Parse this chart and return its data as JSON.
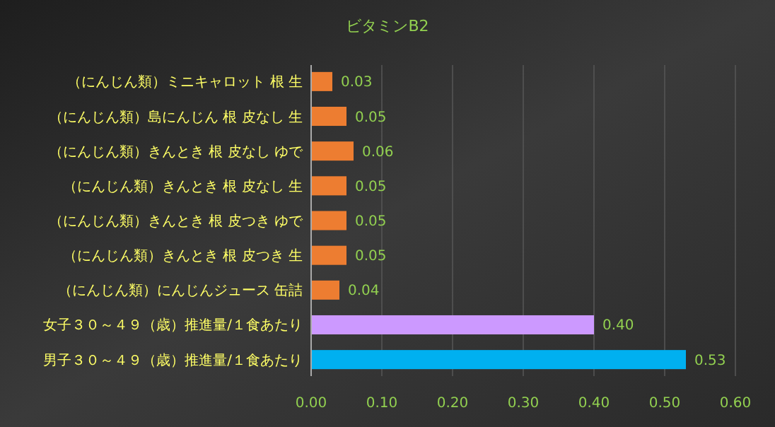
{
  "chart_data": {
    "type": "bar",
    "orientation": "horizontal",
    "title": "ビタミンB2",
    "categories": [
      "（にんじん類）ミニキャロット 根 生",
      "（にんじん類）島にんじん 根 皮なし 生",
      "（にんじん類）きんとき 根 皮なし ゆで",
      "（にんじん類）きんとき 根 皮なし 生",
      "（にんじん類）きんとき 根 皮つき ゆで",
      "（にんじん類）きんとき 根 皮つき 生",
      "（にんじん類）にんじんジュース 缶詰",
      "女子３０～４９（歳）推進量/１食あたり",
      "男子３０～４９（歳）推進量/１食あたり"
    ],
    "values": [
      0.03,
      0.05,
      0.06,
      0.05,
      0.05,
      0.05,
      0.04,
      0.4,
      0.53
    ],
    "colors": [
      "#ed7d31",
      "#ed7d31",
      "#ed7d31",
      "#ed7d31",
      "#ed7d31",
      "#ed7d31",
      "#ed7d31",
      "#cc99ff",
      "#00b0f0"
    ],
    "value_labels": [
      "0.03",
      "0.05",
      "0.06",
      "0.05",
      "0.05",
      "0.05",
      "0.04",
      "0.40",
      "0.53"
    ],
    "xlim": [
      0,
      0.6
    ],
    "xticks": [
      {
        "value": 0,
        "label": "0.00"
      },
      {
        "value": 0.1,
        "label": "0.10"
      },
      {
        "value": 0.2,
        "label": "0.20"
      },
      {
        "value": 0.3,
        "label": "0.30"
      },
      {
        "value": 0.4,
        "label": "0.40"
      },
      {
        "value": 0.5,
        "label": "0.50"
      },
      {
        "value": 0.6,
        "label": "0.60"
      }
    ],
    "grid": "x"
  }
}
